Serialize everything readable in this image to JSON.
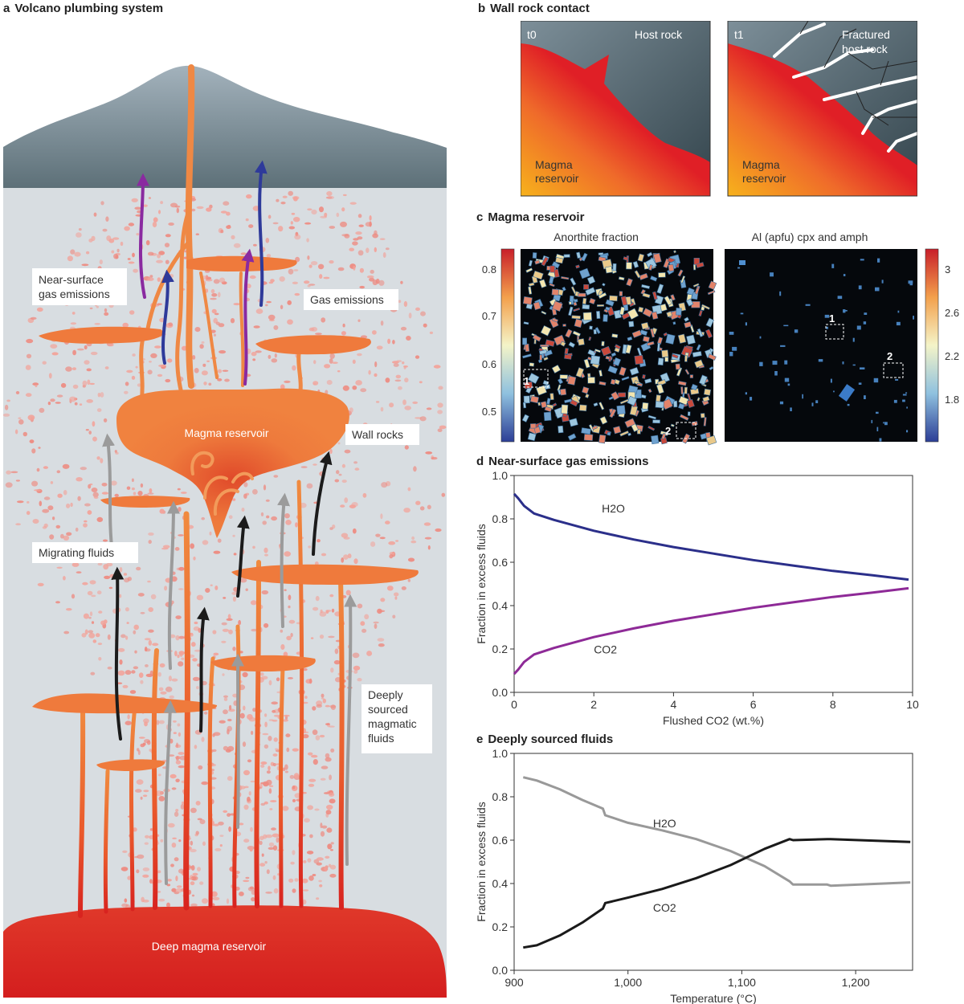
{
  "panel_a": {
    "letter": "a",
    "title": "Volcano plumbing system",
    "labels": {
      "near_surface": [
        "Near-surface",
        "gas emissions"
      ],
      "gas_emissions": "Gas emissions",
      "magma_reservoir": "Magma reservoir",
      "wall_rocks": "Wall rocks",
      "migrating": "Migrating fluids",
      "deeply": [
        "Deeply",
        "sourced",
        "magmatic",
        "fluids"
      ],
      "deep_reservoir": "Deep magma reservoir"
    }
  },
  "panel_b": {
    "letter": "b",
    "title": "Wall rock contact",
    "left": {
      "time": "t0",
      "host": "Host rock",
      "magma": [
        "Magma",
        "reservoir"
      ]
    },
    "right": {
      "time": "t1",
      "host": [
        "Fractured",
        "host rock"
      ],
      "magma": [
        "Magma",
        "reservoir"
      ]
    }
  },
  "panel_c": {
    "letter": "c",
    "title": "Magma reservoir",
    "left_title": "Anorthite fraction",
    "right_title": "Al (apfu) cpx and amph",
    "left_scale": [
      "0.8",
      "0.7",
      "0.6",
      "0.5"
    ],
    "right_scale": [
      "3",
      "2.6",
      "2.2",
      "1.8"
    ],
    "left_markers": [
      "1",
      "2"
    ],
    "right_markers": [
      "1",
      "2"
    ]
  },
  "chart_data": [
    {
      "type": "line",
      "letter": "d",
      "title": "Near-surface gas emissions",
      "xlabel": "Flushed CO2 (wt.%)",
      "ylabel": "Fraction in excess fluids",
      "xlim": [
        0,
        10
      ],
      "ylim": [
        0,
        1
      ],
      "xticks": [
        "0",
        "2",
        "4",
        "6",
        "8",
        "10"
      ],
      "yticks": [
        "0.0",
        "0.2",
        "0.4",
        "0.6",
        "0.8",
        "1.0"
      ],
      "series": [
        {
          "name": "H2O",
          "color": "#2b2f8a",
          "x": [
            0,
            0.1,
            0.25,
            0.5,
            1,
            1.5,
            2,
            3,
            4,
            5,
            6,
            7,
            8,
            9,
            9.9
          ],
          "y": [
            0.915,
            0.895,
            0.86,
            0.825,
            0.795,
            0.77,
            0.745,
            0.705,
            0.67,
            0.64,
            0.61,
            0.585,
            0.56,
            0.54,
            0.52
          ]
        },
        {
          "name": "CO2",
          "color": "#8e2a97",
          "x": [
            0,
            0.1,
            0.25,
            0.5,
            1,
            1.5,
            2,
            3,
            4,
            5,
            6,
            7,
            8,
            9,
            9.9
          ],
          "y": [
            0.085,
            0.105,
            0.14,
            0.175,
            0.205,
            0.23,
            0.255,
            0.295,
            0.33,
            0.36,
            0.39,
            0.415,
            0.44,
            0.46,
            0.48
          ]
        }
      ]
    },
    {
      "type": "line",
      "letter": "e",
      "title": "Deeply sourced fluids",
      "xlabel": "Temperature (°C)",
      "ylabel": "Fraction in excess fluids",
      "xlim": [
        900,
        1250
      ],
      "ylim": [
        0,
        1
      ],
      "xticks": [
        "900",
        "1,000",
        "1,100",
        "1,200"
      ],
      "yticks": [
        "0.0",
        "0.2",
        "0.4",
        "0.6",
        "0.8",
        "1.0"
      ],
      "series": [
        {
          "name": "H2O",
          "color": "#999999",
          "x": [
            908,
            920,
            940,
            960,
            978,
            980,
            1000,
            1030,
            1060,
            1090,
            1120,
            1142,
            1145,
            1175,
            1178,
            1248
          ],
          "y": [
            0.89,
            0.875,
            0.835,
            0.785,
            0.745,
            0.715,
            0.68,
            0.645,
            0.605,
            0.55,
            0.48,
            0.41,
            0.395,
            0.395,
            0.39,
            0.405
          ]
        },
        {
          "name": "CO2",
          "color": "#1a1a1a",
          "x": [
            908,
            920,
            940,
            960,
            978,
            980,
            1000,
            1030,
            1060,
            1090,
            1120,
            1142,
            1145,
            1175,
            1178,
            1248
          ],
          "y": [
            0.105,
            0.115,
            0.16,
            0.22,
            0.285,
            0.31,
            0.335,
            0.375,
            0.425,
            0.485,
            0.56,
            0.605,
            0.6,
            0.605,
            0.605,
            0.592
          ]
        }
      ]
    }
  ]
}
